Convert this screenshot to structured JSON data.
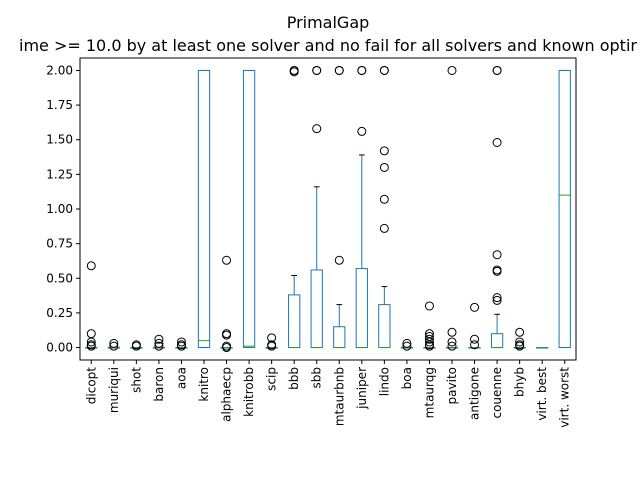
{
  "chart_data": {
    "type": "box",
    "title": "PrimalGap",
    "subtitle": "ime >= 10.0 by at least one solver and no fail for all solvers and known optir",
    "ylim": [
      -0.09,
      2.09
    ],
    "yticks": [
      "0.00",
      "0.25",
      "0.50",
      "0.75",
      "1.00",
      "1.25",
      "1.50",
      "1.75",
      "2.00"
    ],
    "grid": false,
    "colors": {
      "box": "#1f77b4",
      "median": "#2ca02c",
      "whisker": "#000000",
      "flier": "#000000"
    },
    "boxes": [
      {
        "name": "dicopt",
        "q1": 0,
        "median": 0,
        "q3": 0,
        "whislo": 0,
        "whishi": 0,
        "fliers": [
          0.59,
          0.1,
          0.04,
          0.02,
          0.01
        ]
      },
      {
        "name": "muriqui",
        "q1": 0,
        "median": 0,
        "q3": 0,
        "whislo": 0,
        "whishi": 0,
        "fliers": [
          0.03,
          0.01
        ]
      },
      {
        "name": "shot",
        "q1": 0,
        "median": 0,
        "q3": 0,
        "whislo": 0,
        "whishi": 0,
        "fliers": [
          0.02,
          0.01
        ]
      },
      {
        "name": "baron",
        "q1": 0,
        "median": 0,
        "q3": 0,
        "whislo": 0,
        "whishi": 0,
        "fliers": [
          0.06,
          0.03,
          0.01
        ]
      },
      {
        "name": "aoa",
        "q1": 0,
        "median": 0,
        "q3": 0,
        "whislo": 0,
        "whishi": 0,
        "fliers": [
          0.04,
          0.02,
          0.01
        ]
      },
      {
        "name": "knitro",
        "q1": 0,
        "median": 0.05,
        "q3": 2.0,
        "whislo": 0,
        "whishi": 2.0,
        "fliers": []
      },
      {
        "name": "alphaecp",
        "q1": 0,
        "median": 0,
        "q3": 0,
        "whislo": 0,
        "whishi": 0,
        "fliers": [
          0.63,
          0.1,
          0.09,
          0.01,
          0.0
        ]
      },
      {
        "name": "knitrobb",
        "q1": 0,
        "median": 0.01,
        "q3": 2.0,
        "whislo": 0,
        "whishi": 2.0,
        "fliers": []
      },
      {
        "name": "scip",
        "q1": 0,
        "median": 0,
        "q3": 0,
        "whislo": 0,
        "whishi": 0,
        "fliers": [
          0.07,
          0.02,
          0.01
        ]
      },
      {
        "name": "bbb",
        "q1": 0,
        "median": 0,
        "q3": 0.38,
        "whislo": 0,
        "whishi": 0.52,
        "fliers": [
          2.0,
          2.0,
          1.99
        ]
      },
      {
        "name": "sbb",
        "q1": 0,
        "median": 0,
        "q3": 0.56,
        "whislo": 0,
        "whishi": 1.16,
        "fliers": [
          2.0,
          2.0,
          1.58
        ]
      },
      {
        "name": "mtaurbnb",
        "q1": 0,
        "median": 0,
        "q3": 0.15,
        "whislo": 0,
        "whishi": 0.31,
        "fliers": [
          2.0,
          2.0,
          0.63
        ]
      },
      {
        "name": "juniper",
        "q1": 0,
        "median": 0,
        "q3": 0.57,
        "whislo": 0,
        "whishi": 1.39,
        "fliers": [
          2.0,
          2.0,
          1.56
        ]
      },
      {
        "name": "lindo",
        "q1": 0,
        "median": 0,
        "q3": 0.31,
        "whislo": 0,
        "whishi": 0.44,
        "fliers": [
          2.0,
          2.0,
          1.42,
          1.3,
          1.07,
          0.86
        ]
      },
      {
        "name": "boa",
        "q1": 0,
        "median": 0,
        "q3": 0,
        "whislo": 0,
        "whishi": 0,
        "fliers": [
          0.03,
          0.01
        ]
      },
      {
        "name": "mtaurqg",
        "q1": 0,
        "median": 0,
        "q3": 0,
        "whislo": 0,
        "whishi": 0,
        "fliers": [
          0.3,
          0.1,
          0.08,
          0.06,
          0.04,
          0.02,
          0.01
        ]
      },
      {
        "name": "pavito",
        "q1": 0,
        "median": 0,
        "q3": 0,
        "whislo": 0,
        "whishi": 0,
        "fliers": [
          2.0,
          0.11,
          0.04,
          0.01
        ]
      },
      {
        "name": "antigone",
        "q1": 0,
        "median": 0,
        "q3": 0,
        "whislo": 0,
        "whishi": 0,
        "fliers": [
          0.29,
          0.06,
          0.02
        ]
      },
      {
        "name": "couenne",
        "q1": 0,
        "median": 0,
        "q3": 0.1,
        "whislo": 0,
        "whishi": 0.24,
        "fliers": [
          2.0,
          2.0,
          1.48,
          0.67,
          0.56,
          0.55,
          0.36,
          0.34
        ]
      },
      {
        "name": "bhyb",
        "q1": 0,
        "median": 0,
        "q3": 0,
        "whislo": 0,
        "whishi": 0,
        "fliers": [
          0.11,
          0.04,
          0.02,
          0.01
        ]
      },
      {
        "name": "virt. best",
        "q1": 0,
        "median": 0,
        "q3": 0,
        "whislo": 0,
        "whishi": 0,
        "fliers": []
      },
      {
        "name": "virt. worst",
        "q1": 0,
        "median": 1.1,
        "q3": 2.0,
        "whislo": 0,
        "whishi": 2.0,
        "fliers": []
      }
    ]
  }
}
